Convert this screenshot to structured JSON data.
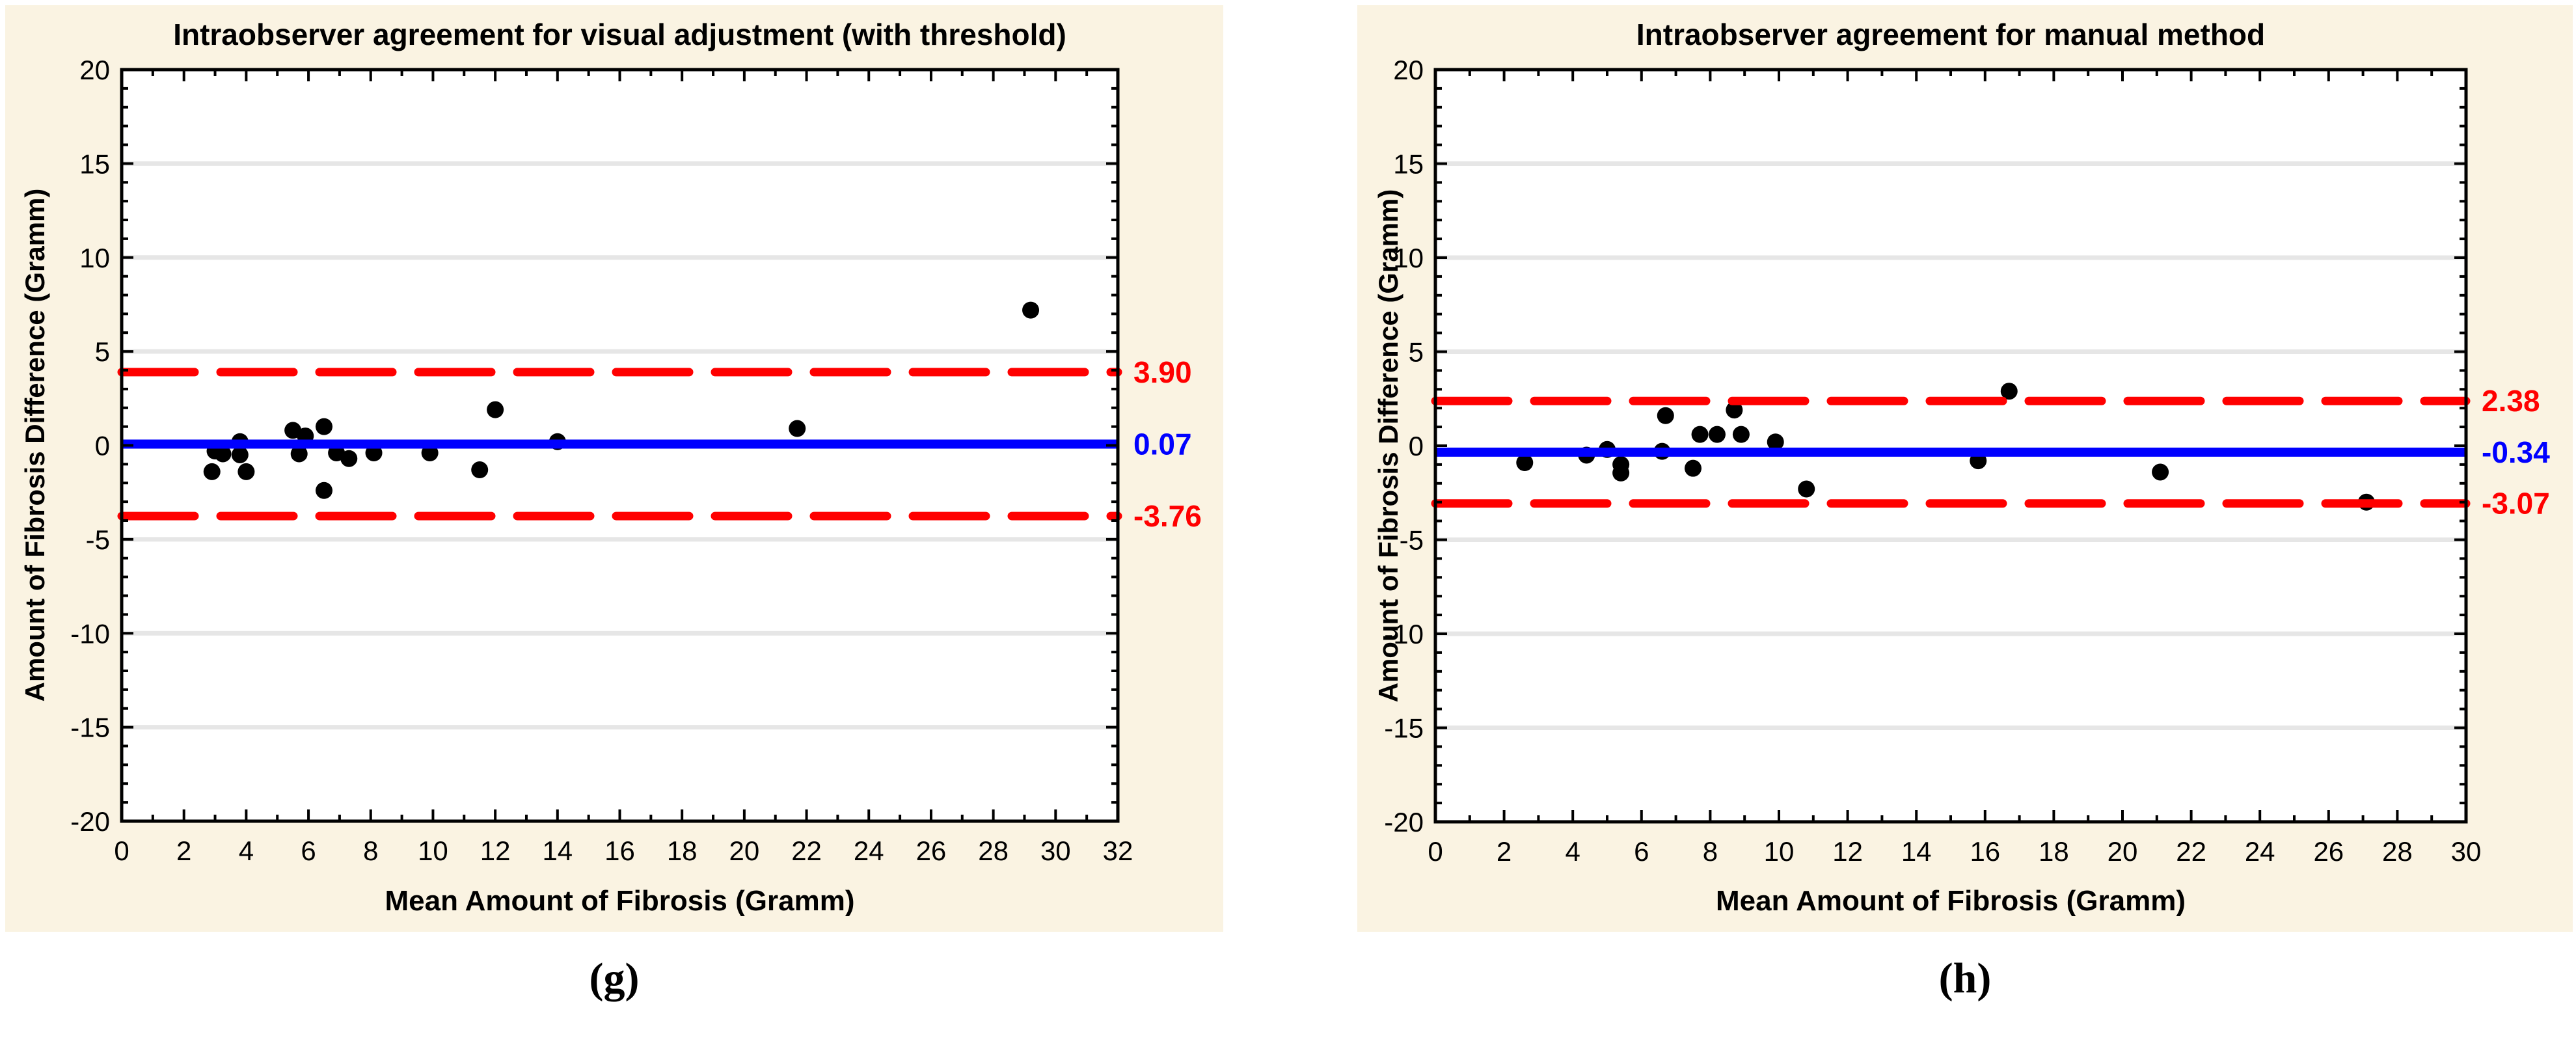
{
  "page_background": "#ffffff",
  "panel_background": "#faf3e2",
  "colors": {
    "mean_line": "#0000ff",
    "limit_line": "#ff0000",
    "marker": "#000000",
    "gridline": "#e6e6e6",
    "axis": "#000000",
    "plot_background": "#ffffff"
  },
  "figures": [
    {
      "caption": "(g)",
      "title": "Intraobserver agreement for visual adjustment (with threshold)",
      "xlabel": "Mean Amount of Fibrosis (Gramm)",
      "ylabel": "Amount of Fibrosis Difference (Gramm)",
      "chart_data": {
        "type": "scatter",
        "xlim": [
          0,
          32
        ],
        "ylim": [
          -20,
          20
        ],
        "x_tick_label_step": 2,
        "x_tick_minor_step": 1,
        "y_tick_label_step": 5,
        "y_tick_minor_step": 1,
        "gridlines_y": [
          -15,
          -10,
          -5,
          5,
          10,
          15
        ],
        "points": [
          [
            2.9,
            -1.4
          ],
          [
            3.0,
            -0.3
          ],
          [
            3.25,
            -0.45
          ],
          [
            3.8,
            0.2
          ],
          [
            3.8,
            -0.5
          ],
          [
            4.0,
            -1.4
          ],
          [
            5.5,
            0.8
          ],
          [
            5.7,
            -0.45
          ],
          [
            5.9,
            0.5
          ],
          [
            6.5,
            1.0
          ],
          [
            6.5,
            -2.4
          ],
          [
            6.9,
            -0.4
          ],
          [
            7.3,
            -0.7
          ],
          [
            8.1,
            -0.4
          ],
          [
            9.9,
            -0.4
          ],
          [
            11.5,
            -1.3
          ],
          [
            12.0,
            1.9
          ],
          [
            14.0,
            0.2
          ],
          [
            21.7,
            0.9
          ],
          [
            29.2,
            7.2
          ]
        ],
        "mean_line": {
          "value": 0.07,
          "label": "0.07"
        },
        "upper_limit": {
          "value": 3.9,
          "label": "3.90"
        },
        "lower_limit": {
          "value": -3.76,
          "label": "-3.76"
        }
      }
    },
    {
      "caption": "(h)",
      "title": "Intraobserver agreement for manual method",
      "xlabel": "Mean Amount of Fibrosis (Gramm)",
      "ylabel": "Amount of Fibrosis Difference (Gramm)",
      "chart_data": {
        "type": "scatter",
        "xlim": [
          0,
          30
        ],
        "ylim": [
          -20,
          20
        ],
        "x_tick_label_step": 2,
        "x_tick_minor_step": 1,
        "y_tick_label_step": 5,
        "y_tick_minor_step": 1,
        "gridlines_y": [
          -15,
          -10,
          -5,
          5,
          10,
          15
        ],
        "points": [
          [
            2.6,
            -0.9
          ],
          [
            4.4,
            -0.5
          ],
          [
            5.0,
            -0.2
          ],
          [
            5.4,
            -1.0
          ],
          [
            5.4,
            -1.45
          ],
          [
            6.6,
            -0.3
          ],
          [
            6.7,
            1.6
          ],
          [
            7.5,
            -1.2
          ],
          [
            7.7,
            0.6
          ],
          [
            8.2,
            0.6
          ],
          [
            8.7,
            1.9
          ],
          [
            8.9,
            0.6
          ],
          [
            9.9,
            0.2
          ],
          [
            10.8,
            -2.3
          ],
          [
            15.8,
            -0.8
          ],
          [
            16.7,
            2.9
          ],
          [
            21.1,
            -1.4
          ],
          [
            27.1,
            -3.0
          ]
        ],
        "mean_line": {
          "value": -0.34,
          "label": "-0.34"
        },
        "upper_limit": {
          "value": 2.38,
          "label": "2.38"
        },
        "lower_limit": {
          "value": -3.07,
          "label": "-3.07"
        }
      }
    }
  ]
}
